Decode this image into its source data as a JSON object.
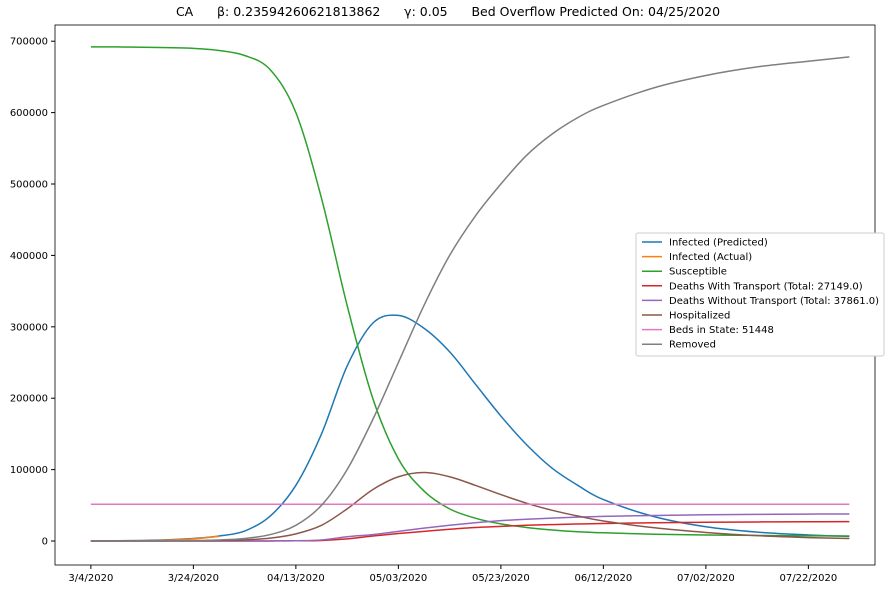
{
  "chart_data": {
    "type": "line",
    "title": "CA      β: 0.23594260621813862      γ: 0.05      Bed Overflow Predicted On: 04/25/2020",
    "xlabel": "",
    "ylabel": "",
    "x_ticks": [
      "3/4/2020",
      "3/24/2020",
      "04/13/2020",
      "05/03/2020",
      "05/23/2020",
      "06/12/2020",
      "07/02/2020",
      "07/22/2020"
    ],
    "x_tick_dates": [
      "2020-03-04",
      "2020-03-24",
      "2020-04-13",
      "2020-05-03",
      "2020-05-23",
      "2020-06-12",
      "2020-07-02",
      "2020-07-22"
    ],
    "xlim": [
      "2020-02-26",
      "2020-08-04"
    ],
    "y_ticks": [
      0,
      100000,
      200000,
      300000,
      400000,
      500000,
      600000,
      700000
    ],
    "ylim": [
      -33600,
      722700
    ],
    "grid": false,
    "legend_position": "center-right",
    "x": [
      "2020-03-04",
      "2020-03-09",
      "2020-03-14",
      "2020-03-19",
      "2020-03-24",
      "2020-03-29",
      "2020-04-03",
      "2020-04-08",
      "2020-04-13",
      "2020-04-18",
      "2020-04-23",
      "2020-04-28",
      "2020-05-03",
      "2020-05-08",
      "2020-05-13",
      "2020-05-18",
      "2020-05-23",
      "2020-05-28",
      "2020-06-02",
      "2020-06-07",
      "2020-06-12",
      "2020-06-22",
      "2020-07-02",
      "2020-07-12",
      "2020-07-22",
      "2020-07-30"
    ],
    "series": [
      {
        "name": "Infected (Predicted)",
        "color": "#1f77b4",
        "values": [
          100,
          300,
          800,
          1800,
          3500,
          7000,
          14000,
          35000,
          78000,
          150000,
          245000,
          305000,
          316000,
          298000,
          265000,
          220000,
          175000,
          135000,
          102000,
          78000,
          58000,
          34000,
          20000,
          12500,
          8500,
          6500
        ]
      },
      {
        "name": "Infected (Actual)",
        "color": "#ff7f0e",
        "values": [
          0,
          100,
          400,
          1200,
          3000,
          6500,
          null,
          null,
          null,
          null,
          null,
          null,
          null,
          null,
          null,
          null,
          null,
          null,
          null,
          null,
          null,
          null,
          null,
          null,
          null,
          null
        ]
      },
      {
        "name": "Susceptible",
        "color": "#2ca02c",
        "values": [
          692000,
          692000,
          691500,
          691000,
          690000,
          687000,
          680000,
          660000,
          600000,
          480000,
          330000,
          200000,
          115000,
          70000,
          45000,
          32000,
          24000,
          19000,
          15500,
          13000,
          11500,
          9500,
          8500,
          7800,
          7200,
          7000
        ]
      },
      {
        "name": "Deaths With Transport (Total: 27149.0)",
        "color": "#d62728",
        "values": [
          0,
          0,
          0,
          0,
          0,
          0,
          0,
          100,
          300,
          800,
          3000,
          7000,
          10500,
          13500,
          16500,
          19000,
          20500,
          22000,
          23000,
          23800,
          24500,
          25500,
          26200,
          26700,
          27000,
          27149
        ]
      },
      {
        "name": "Deaths Without Transport (Total: 37861.0)",
        "color": "#9467bd",
        "values": [
          0,
          0,
          0,
          0,
          0,
          0,
          0,
          100,
          400,
          1500,
          6000,
          9000,
          13500,
          18000,
          22000,
          25500,
          28500,
          30500,
          32000,
          33500,
          34500,
          35800,
          36700,
          37300,
          37700,
          37861
        ]
      },
      {
        "name": "Hospitalized",
        "color": "#8c564b",
        "values": [
          0,
          0,
          0,
          100,
          300,
          700,
          1500,
          4000,
          10000,
          22000,
          45000,
          72000,
          90000,
          96000,
          90000,
          78000,
          65000,
          53000,
          43000,
          35000,
          28000,
          18500,
          12000,
          7500,
          4800,
          3500
        ]
      },
      {
        "name": "Beds in State: 51448",
        "color": "#e377c2",
        "values": [
          51448,
          51448,
          51448,
          51448,
          51448,
          51448,
          51448,
          51448,
          51448,
          51448,
          51448,
          51448,
          51448,
          51448,
          51448,
          51448,
          51448,
          51448,
          51448,
          51448,
          51448,
          51448,
          51448,
          51448,
          51448,
          51448
        ]
      },
      {
        "name": "Removed",
        "color": "#7f7f7f",
        "values": [
          0,
          0,
          100,
          300,
          700,
          1500,
          3500,
          9000,
          22000,
          50000,
          100000,
          170000,
          250000,
          330000,
          400000,
          455000,
          500000,
          540000,
          570000,
          593000,
          610000,
          635000,
          652000,
          664000,
          672000,
          678000
        ]
      }
    ]
  }
}
